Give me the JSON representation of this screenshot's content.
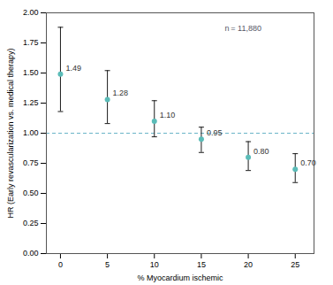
{
  "chart_data": {
    "type": "scatter",
    "x": [
      0,
      5,
      10,
      15,
      20,
      25
    ],
    "values": [
      1.49,
      1.28,
      1.1,
      0.95,
      0.8,
      0.7
    ],
    "value_labels": [
      "1.49",
      "1.28",
      "1.10",
      "0.95",
      "0.80",
      "0.70"
    ],
    "data_labels": true,
    "color": "#5bbcb8",
    "error_bars": {
      "upper": [
        1.88,
        1.52,
        1.27,
        1.05,
        0.93,
        0.83
      ],
      "lower": [
        1.18,
        1.08,
        0.97,
        0.84,
        0.69,
        0.59
      ],
      "color": "#1a1a1a"
    },
    "reference_line": {
      "y": 1.0,
      "color": "#6ab4c8",
      "line_style": "dashed"
    },
    "annotations": [
      {
        "text": "n = 11,880",
        "x": 17.5,
        "y": 1.87,
        "color": "#555566"
      }
    ],
    "xlabel": "% Myocardium ischemic",
    "ylabel": "HR (Early revascularization vs. medical therapy)",
    "xlim": [
      -1.5,
      27
    ],
    "ylim": [
      0.0,
      2.0
    ],
    "xticks": [
      0,
      5,
      10,
      15,
      20,
      25
    ],
    "yticks": [
      {
        "value": 0.0,
        "label": "0.00"
      },
      {
        "value": 0.25,
        "label": "0.25"
      },
      {
        "value": 0.5,
        "label": "0.50"
      },
      {
        "value": 0.75,
        "label": "0.75"
      },
      {
        "value": 1.0,
        "label": "1.00"
      },
      {
        "value": 1.25,
        "label": "1.25"
      },
      {
        "value": 1.5,
        "label": "1.50"
      },
      {
        "value": 1.75,
        "label": "1.75"
      },
      {
        "value": 2.0,
        "label": "2.00"
      }
    ],
    "grid": false
  }
}
